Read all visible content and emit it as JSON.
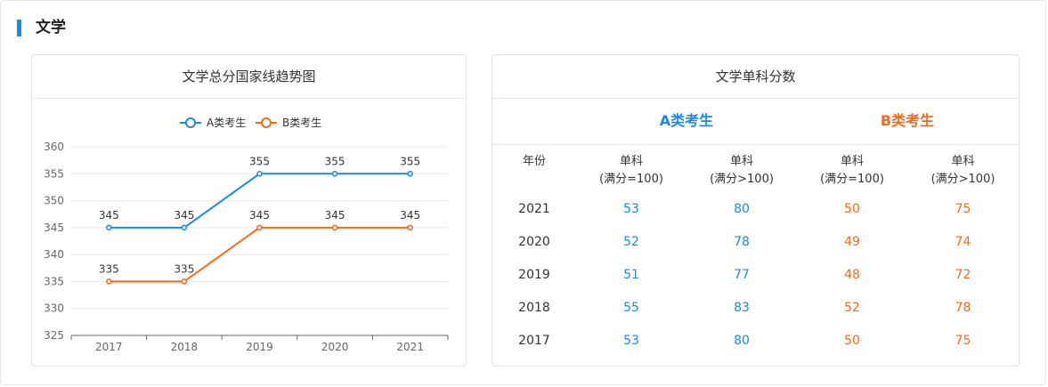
{
  "section": {
    "title": "文学"
  },
  "left_card": {
    "title": "文学总分国家线趋势图"
  },
  "chart_data": {
    "type": "line",
    "title": "文学总分国家线趋势图",
    "x": [
      "2017",
      "2018",
      "2019",
      "2020",
      "2021"
    ],
    "y_ticks": [
      325,
      330,
      335,
      340,
      345,
      350,
      355,
      360
    ],
    "ylim": [
      325,
      360
    ],
    "legend_position": "top",
    "grid": true,
    "series": [
      {
        "name": "A类考生",
        "color": "#1e88e5",
        "values": [
          345,
          345,
          355,
          355,
          355
        ]
      },
      {
        "name": "B类考生",
        "color": "#f26b1d",
        "values": [
          335,
          335,
          345,
          345,
          345
        ]
      }
    ]
  },
  "right_card": {
    "title": "文学单科分数",
    "group_a": "A类考生",
    "group_b": "B类考生",
    "headers": {
      "year": "年份",
      "a_low_1": "单科",
      "a_low_2": "(满分=100)",
      "a_high_1": "单科",
      "a_high_2": "(满分>100)",
      "b_low_1": "单科",
      "b_low_2": "(满分=100)",
      "b_high_1": "单科",
      "b_high_2": "(满分>100)"
    },
    "rows": [
      {
        "year": "2021",
        "a_low": "53",
        "a_high": "80",
        "b_low": "50",
        "b_high": "75"
      },
      {
        "year": "2020",
        "a_low": "52",
        "a_high": "78",
        "b_low": "49",
        "b_high": "74"
      },
      {
        "year": "2019",
        "a_low": "51",
        "a_high": "77",
        "b_low": "48",
        "b_high": "72"
      },
      {
        "year": "2018",
        "a_low": "55",
        "a_high": "83",
        "b_low": "52",
        "b_high": "78"
      },
      {
        "year": "2017",
        "a_low": "53",
        "a_high": "80",
        "b_low": "50",
        "b_high": "75"
      }
    ]
  }
}
